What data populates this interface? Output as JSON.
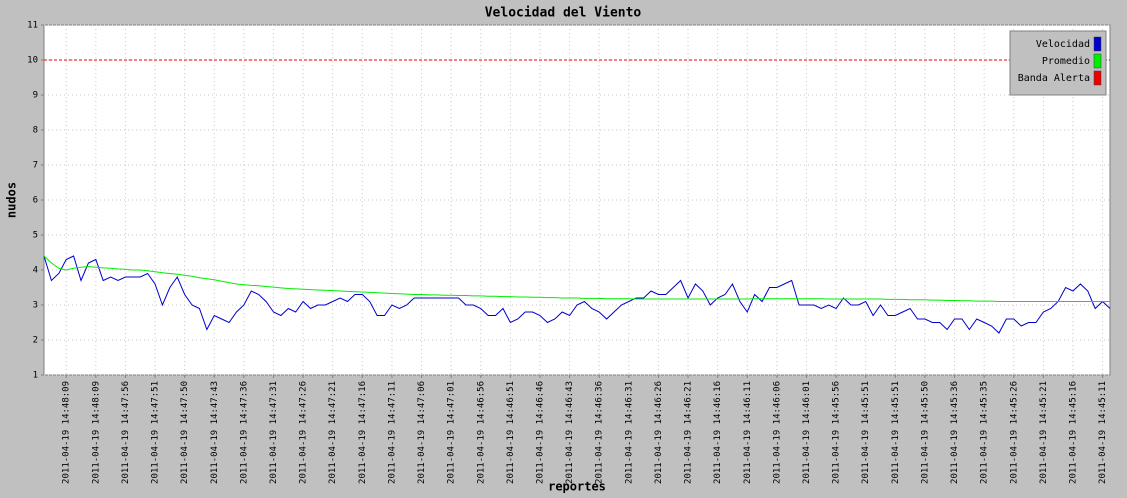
{
  "chart_data": {
    "type": "line",
    "title": "Velocidad del Viento",
    "x_label": "reportes",
    "y_label": "nudos",
    "categories": [
      null,
      null,
      null,
      "2011-04-19 14:48:09",
      null,
      null,
      null,
      "2011-04-19 14:48:09",
      null,
      null,
      null,
      "2011-04-19 14:47:56",
      null,
      null,
      null,
      "2011-04-19 14:47:51",
      null,
      null,
      null,
      "2011-04-19 14:47:50",
      null,
      null,
      null,
      "2011-04-19 14:47:43",
      null,
      null,
      null,
      "2011-04-19 14:47:36",
      null,
      null,
      null,
      "2011-04-19 14:47:31",
      null,
      null,
      null,
      "2011-04-19 14:47:26",
      null,
      null,
      null,
      "2011-04-19 14:47:21",
      null,
      null,
      null,
      "2011-04-19 14:47:16",
      null,
      null,
      null,
      "2011-04-19 14:47:11",
      null,
      null,
      null,
      "2011-04-19 14:47:06",
      null,
      null,
      null,
      "2011-04-19 14:47:01",
      null,
      null,
      null,
      "2011-04-19 14:46:56",
      null,
      null,
      null,
      "2011-04-19 14:46:51",
      null,
      null,
      null,
      "2011-04-19 14:46:46",
      null,
      null,
      null,
      "2011-04-19 14:46:43",
      null,
      null,
      null,
      "2011-04-19 14:46:36",
      null,
      null,
      null,
      "2011-04-19 14:46:31",
      null,
      null,
      null,
      "2011-04-19 14:46:26",
      null,
      null,
      null,
      "2011-04-19 14:46:21",
      null,
      null,
      null,
      "2011-04-19 14:46:16",
      null,
      null,
      null,
      "2011-04-19 14:46:11",
      null,
      null,
      null,
      "2011-04-19 14:46:06",
      null,
      null,
      null,
      "2011-04-19 14:46:01",
      null,
      null,
      null,
      "2011-04-19 14:45:56",
      null,
      null,
      null,
      "2011-04-19 14:45:51",
      null,
      null,
      null,
      "2011-04-19 14:45:51",
      null,
      null,
      null,
      "2011-04-19 14:45:50",
      null,
      null,
      null,
      "2011-04-19 14:45:36",
      null,
      null,
      null,
      "2011-04-19 14:45:35",
      null,
      null,
      null,
      "2011-04-19 14:45:26",
      null,
      null,
      null,
      "2011-04-19 14:45:21",
      null,
      null,
      null,
      "2011-04-19 14:45:16",
      null,
      null,
      null,
      "2011-04-19 14:45:11",
      null
    ],
    "series": [
      {
        "name": "Velocidad",
        "color": "#0000cc",
        "values": [
          4.4,
          3.7,
          3.9,
          4.3,
          4.4,
          3.7,
          4.2,
          4.3,
          3.7,
          3.8,
          3.7,
          3.8,
          3.8,
          3.8,
          3.9,
          3.6,
          3.0,
          3.5,
          3.8,
          3.3,
          3.0,
          2.9,
          2.3,
          2.7,
          2.6,
          2.5,
          2.8,
          3.0,
          3.4,
          3.3,
          3.1,
          2.8,
          2.7,
          2.9,
          2.8,
          3.1,
          2.9,
          3.0,
          3.0,
          3.1,
          3.2,
          3.1,
          3.3,
          3.3,
          3.1,
          2.7,
          2.7,
          3.0,
          2.9,
          3.0,
          3.2,
          3.2,
          3.2,
          3.2,
          3.2,
          3.2,
          3.2,
          3.0,
          3.0,
          2.9,
          2.7,
          2.7,
          2.9,
          2.5,
          2.6,
          2.8,
          2.8,
          2.7,
          2.5,
          2.6,
          2.8,
          2.7,
          3.0,
          3.1,
          2.9,
          2.8,
          2.6,
          2.8,
          3.0,
          3.1,
          3.2,
          3.2,
          3.4,
          3.3,
          3.3,
          3.5,
          3.7,
          3.2,
          3.6,
          3.4,
          3.0,
          3.2,
          3.3,
          3.6,
          3.1,
          2.8,
          3.3,
          3.1,
          3.5,
          3.5,
          3.6,
          3.7,
          3.0,
          3.0,
          3.0,
          2.9,
          3.0,
          2.9,
          3.2,
          3.0,
          3.0,
          3.1,
          2.7,
          3.0,
          2.7,
          2.7,
          2.8,
          2.9,
          2.6,
          2.6,
          2.5,
          2.5,
          2.3,
          2.6,
          2.6,
          2.3,
          2.6,
          2.5,
          2.4,
          2.2,
          2.6,
          2.6,
          2.4,
          2.5,
          2.5,
          2.8,
          2.9,
          3.1,
          3.5,
          3.4,
          3.6,
          3.4,
          2.9,
          3.1,
          2.9
        ]
      },
      {
        "name": "Promedio",
        "color": "#00ee00",
        "values": [
          4.4,
          4.2,
          4.05,
          4.0,
          4.05,
          4.08,
          4.1,
          4.08,
          4.06,
          4.05,
          4.03,
          4.02,
          4.0,
          4.0,
          3.98,
          3.95,
          3.92,
          3.9,
          3.88,
          3.85,
          3.82,
          3.78,
          3.75,
          3.72,
          3.68,
          3.64,
          3.6,
          3.58,
          3.56,
          3.55,
          3.53,
          3.51,
          3.49,
          3.47,
          3.46,
          3.45,
          3.44,
          3.43,
          3.42,
          3.41,
          3.4,
          3.39,
          3.38,
          3.37,
          3.36,
          3.35,
          3.34,
          3.33,
          3.32,
          3.31,
          3.3,
          3.3,
          3.29,
          3.29,
          3.28,
          3.28,
          3.27,
          3.27,
          3.26,
          3.26,
          3.25,
          3.25,
          3.24,
          3.24,
          3.23,
          3.23,
          3.22,
          3.22,
          3.21,
          3.21,
          3.2,
          3.2,
          3.2,
          3.19,
          3.19,
          3.19,
          3.18,
          3.18,
          3.18,
          3.18,
          3.17,
          3.17,
          3.17,
          3.17,
          3.17,
          3.17,
          3.17,
          3.17,
          3.17,
          3.17,
          3.17,
          3.17,
          3.17,
          3.17,
          3.17,
          3.17,
          3.18,
          3.18,
          3.18,
          3.18,
          3.18,
          3.18,
          3.18,
          3.18,
          3.18,
          3.18,
          3.17,
          3.17,
          3.17,
          3.17,
          3.17,
          3.17,
          3.17,
          3.17,
          3.16,
          3.16,
          3.16,
          3.15,
          3.15,
          3.15,
          3.14,
          3.14,
          3.13,
          3.13,
          3.12,
          3.12,
          3.11,
          3.11,
          3.11,
          3.1,
          3.1,
          3.1,
          3.1,
          3.1,
          3.1,
          3.1,
          3.1,
          3.1,
          3.1,
          3.1,
          3.1,
          3.1,
          3.1,
          3.1,
          3.1
        ]
      },
      {
        "name": "Banda Alerta",
        "color": "#ee0000",
        "dashed": true,
        "values": [
          10,
          10,
          10,
          10,
          10,
          10,
          10,
          10,
          10,
          10,
          10,
          10,
          10,
          10,
          10,
          10,
          10,
          10,
          10,
          10,
          10,
          10,
          10,
          10,
          10,
          10,
          10,
          10,
          10,
          10,
          10,
          10,
          10,
          10,
          10,
          10,
          10,
          10,
          10,
          10,
          10,
          10,
          10,
          10,
          10,
          10,
          10,
          10,
          10,
          10,
          10,
          10,
          10,
          10,
          10,
          10,
          10,
          10,
          10,
          10,
          10,
          10,
          10,
          10,
          10,
          10,
          10,
          10,
          10,
          10,
          10,
          10,
          10,
          10,
          10,
          10,
          10,
          10,
          10,
          10,
          10,
          10,
          10,
          10,
          10,
          10,
          10,
          10,
          10,
          10,
          10,
          10,
          10,
          10,
          10,
          10,
          10,
          10,
          10,
          10,
          10,
          10,
          10,
          10,
          10,
          10,
          10,
          10,
          10,
          10,
          10,
          10,
          10,
          10,
          10,
          10,
          10,
          10,
          10,
          10,
          10,
          10,
          10,
          10,
          10,
          10,
          10,
          10,
          10,
          10,
          10,
          10,
          10,
          10,
          10,
          10,
          10,
          10,
          10,
          10,
          10,
          10,
          10,
          10,
          10
        ]
      }
    ],
    "ylim": [
      1,
      11
    ],
    "yticks": [
      1,
      2,
      3,
      4,
      5,
      6,
      7,
      8,
      9,
      10,
      11
    ],
    "grid": true,
    "legend": "upper right"
  }
}
